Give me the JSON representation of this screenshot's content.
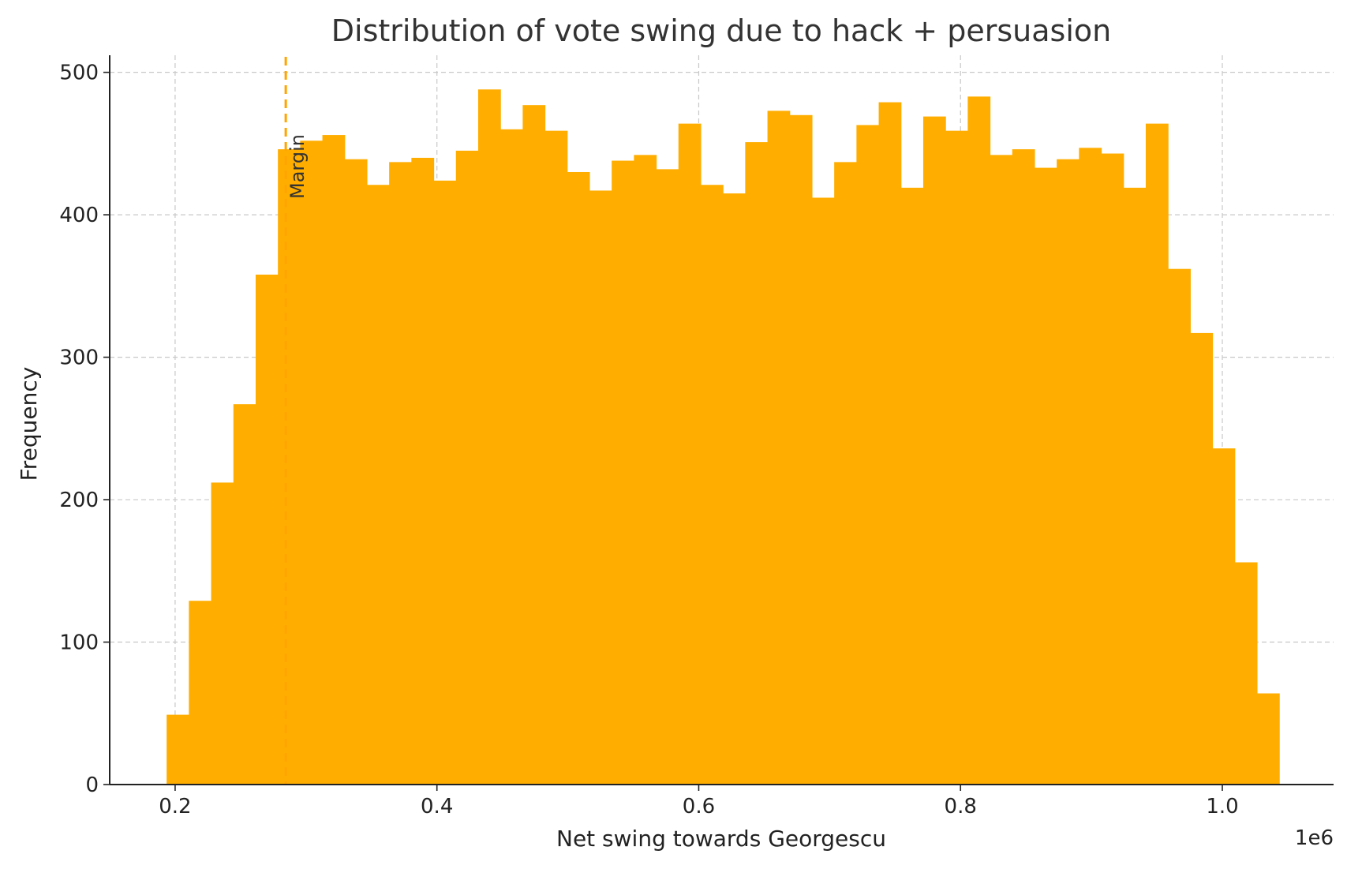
{
  "chart_data": {
    "type": "bar",
    "title": "Distribution of vote swing due to hack + persuasion",
    "xlabel": "Net swing towards Georgescu",
    "ylabel": "Frequency",
    "x_offset_label": "1e6",
    "xlim": [
      0.15,
      1.085
    ],
    "ylim": [
      0,
      512
    ],
    "x_ticks": [
      0.2,
      0.4,
      0.6,
      0.8,
      1.0
    ],
    "x_tick_labels": [
      "0.2",
      "0.4",
      "0.6",
      "0.8",
      "1.0"
    ],
    "y_ticks": [
      0,
      100,
      200,
      300,
      400,
      500
    ],
    "y_tick_labels": [
      "0",
      "100",
      "200",
      "300",
      "400",
      "500"
    ],
    "grid": true,
    "bar_color": "#FFAE00",
    "bin_start": 0.1935,
    "bin_width": 0.017,
    "values": [
      49,
      129,
      212,
      267,
      358,
      446,
      452,
      456,
      439,
      421,
      437,
      440,
      424,
      445,
      488,
      460,
      477,
      459,
      430,
      417,
      438,
      442,
      432,
      464,
      421,
      415,
      451,
      473,
      470,
      412,
      437,
      463,
      479,
      419,
      469,
      459,
      483,
      442,
      446,
      433,
      439,
      447,
      443,
      419,
      464,
      362,
      317,
      236,
      156,
      64
    ],
    "vline": {
      "x": 0.2845,
      "color": "#FFA500",
      "style": "dashed",
      "label": "Margin"
    }
  }
}
